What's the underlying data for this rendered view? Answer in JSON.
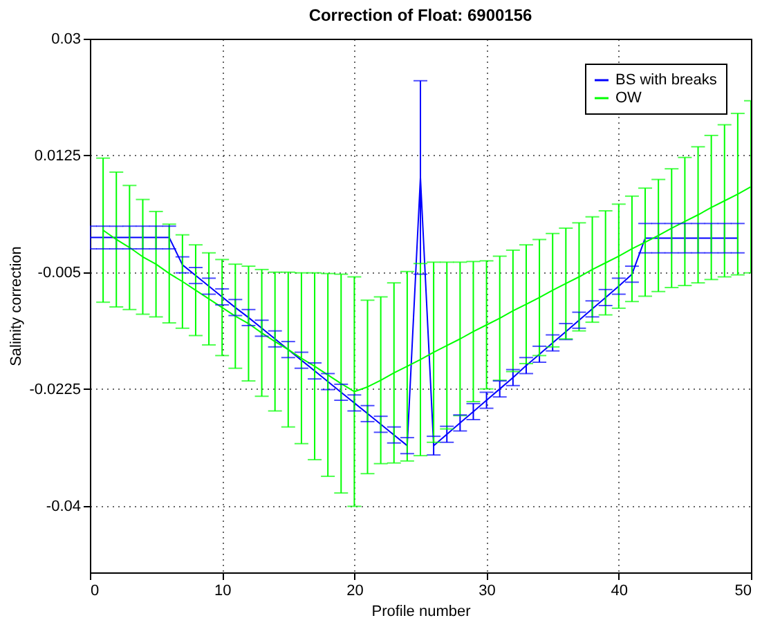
{
  "chart_data": {
    "type": "line",
    "title": "Correction of Float: 6900156",
    "xlabel": "Profile number",
    "ylabel": "Salinity correction",
    "xlim": [
      0,
      50
    ],
    "ylim": [
      -0.05,
      0.03
    ],
    "xticks": [
      0,
      10,
      20,
      30,
      40,
      50
    ],
    "yticks": [
      0.03,
      0.0125,
      -0.005,
      -0.0225,
      -0.04
    ],
    "grid": true,
    "legend": "top right",
    "series": [
      {
        "name": "BS with breaks",
        "color": "#0000ff",
        "x": [
          0,
          1,
          2,
          3,
          4,
          5,
          6,
          7,
          8,
          9,
          10,
          11,
          12,
          13,
          14,
          15,
          16,
          17,
          18,
          19,
          20,
          21,
          22,
          23,
          24,
          25,
          26,
          27,
          28,
          29,
          30,
          31,
          32,
          33,
          34,
          35,
          36,
          37,
          38,
          39,
          40,
          41,
          42,
          43,
          44,
          45,
          46,
          47,
          48,
          49
        ],
        "values": [
          0.0002,
          0.0002,
          0.0002,
          0.0002,
          0.0002,
          0.0002,
          0.0002,
          -0.0039,
          -0.0055,
          -0.0071,
          -0.0087,
          -0.0103,
          -0.0118,
          -0.0134,
          -0.015,
          -0.0166,
          -0.0182,
          -0.0198,
          -0.0214,
          -0.023,
          -0.0246,
          -0.0262,
          -0.0278,
          -0.0294,
          -0.031,
          0.0092,
          -0.031,
          -0.0293,
          -0.0276,
          -0.0259,
          -0.0242,
          -0.0225,
          -0.0208,
          -0.019,
          -0.0173,
          -0.0156,
          -0.0139,
          -0.0122,
          -0.0105,
          -0.0088,
          -0.0071,
          -0.0053,
          0.0001,
          0.0001,
          0.0001,
          0.0001,
          0.0001,
          0.0001,
          0.0001,
          0.0001
        ],
        "errors": [
          0.0017,
          0.0017,
          0.0017,
          0.0017,
          0.0017,
          0.0017,
          0.0017,
          0.0012,
          0.0012,
          0.0012,
          0.0012,
          0.0012,
          0.0012,
          0.0012,
          0.0012,
          0.0012,
          0.0012,
          0.0012,
          0.0012,
          0.0012,
          0.0012,
          0.0012,
          0.0012,
          0.0012,
          0.0012,
          0.0145,
          0.0014,
          0.0012,
          0.0012,
          0.0012,
          0.0012,
          0.0012,
          0.0012,
          0.0012,
          0.0012,
          0.0012,
          0.0012,
          0.0012,
          0.0012,
          0.0012,
          0.0012,
          0.0012,
          0.0022,
          0.0022,
          0.0022,
          0.0022,
          0.0022,
          0.0022,
          0.0022,
          0.0022
        ]
      },
      {
        "name": "OW",
        "color": "#00ff00",
        "x": [
          1,
          2,
          3,
          4,
          5,
          6,
          7,
          8,
          9,
          10,
          11,
          12,
          13,
          14,
          15,
          16,
          17,
          18,
          19,
          20,
          21,
          22,
          23,
          24,
          25,
          26,
          27,
          28,
          29,
          30,
          31,
          32,
          33,
          34,
          35,
          36,
          37,
          38,
          39,
          40,
          41,
          42,
          43,
          44,
          45,
          46,
          47,
          48,
          49,
          50
        ],
        "values": [
          0.0013,
          -0.0001,
          -0.0013,
          -0.0027,
          -0.0038,
          -0.0052,
          -0.0064,
          -0.0077,
          -0.009,
          -0.0103,
          -0.0116,
          -0.0127,
          -0.0141,
          -0.0154,
          -0.0166,
          -0.0179,
          -0.0191,
          -0.0204,
          -0.0217,
          -0.0229,
          -0.0222,
          -0.0212,
          -0.0201,
          -0.0191,
          -0.0181,
          -0.017,
          -0.016,
          -0.015,
          -0.0139,
          -0.0129,
          -0.0119,
          -0.0108,
          -0.0098,
          -0.0088,
          -0.0077,
          -0.0067,
          -0.0057,
          -0.0046,
          -0.0036,
          -0.0026,
          -0.0015,
          -0.0005,
          0.0005,
          0.0016,
          0.0026,
          0.0036,
          0.0047,
          0.0057,
          0.0067,
          0.0078
        ],
        "errors": [
          0.0108,
          0.0101,
          0.0093,
          0.0086,
          0.0079,
          0.0074,
          0.007,
          0.0068,
          0.0069,
          0.0072,
          0.0078,
          0.0086,
          0.0095,
          0.0104,
          0.0116,
          0.0128,
          0.014,
          0.0152,
          0.0164,
          0.0172,
          0.013,
          0.0125,
          0.0135,
          0.0142,
          0.0144,
          0.0135,
          0.0125,
          0.0115,
          0.0105,
          0.0096,
          0.0093,
          0.0091,
          0.0089,
          0.0087,
          0.0085,
          0.0083,
          0.0081,
          0.0079,
          0.0078,
          0.0078,
          0.0079,
          0.0081,
          0.0084,
          0.0089,
          0.0096,
          0.0102,
          0.0108,
          0.0114,
          0.0121,
          0.0129
        ]
      }
    ]
  }
}
